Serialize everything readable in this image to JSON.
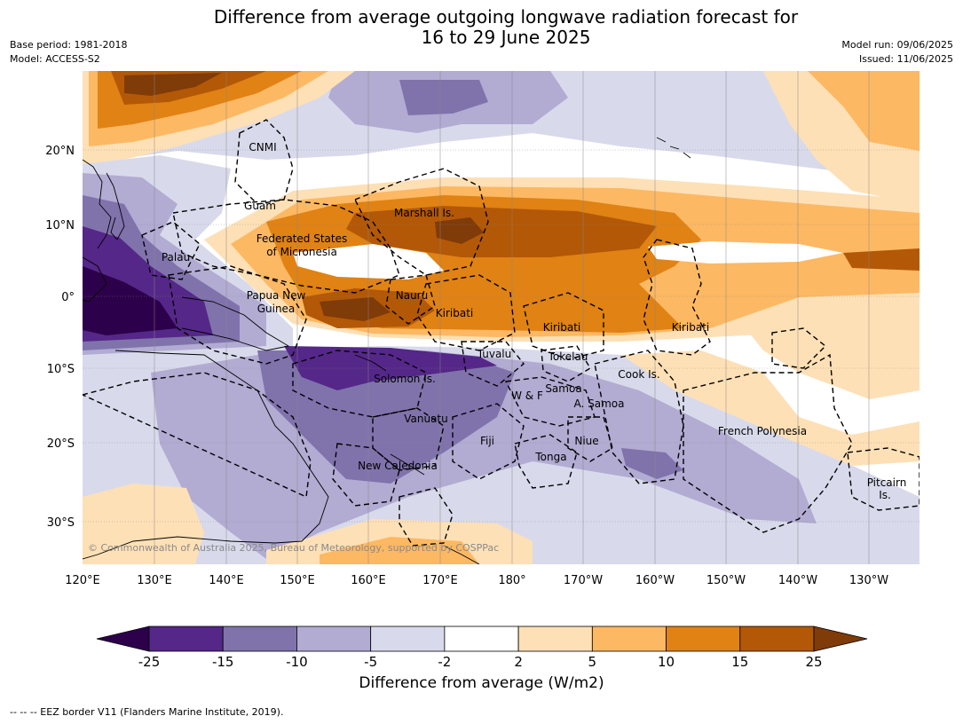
{
  "header": {
    "title_line1": "Difference from average outgoing longwave radiation forecast for",
    "title_line2": "16 to 29 June 2025",
    "base_period": "Base period: 1981-2018",
    "model": "Model: ACCESS-S2",
    "model_run": "Model run: 09/06/2025",
    "issued": "Issued: 11/06/2025"
  },
  "map": {
    "lon_ticks": [
      "120°E",
      "130°E",
      "140°E",
      "150°E",
      "160°E",
      "170°E",
      "180°",
      "170°W",
      "160°W",
      "150°W",
      "140°W",
      "130°W"
    ],
    "lat_ticks": [
      "20°N",
      "10°N",
      "0°",
      "10°S",
      "20°S",
      "30°S"
    ],
    "region_labels": [
      {
        "text": "CNMI"
      },
      {
        "text": "Guam"
      },
      {
        "text": "Marshall Is."
      },
      {
        "text": "Federated States"
      },
      {
        "text": "of Micronesia"
      },
      {
        "text": "Palau"
      },
      {
        "text": "Papua New"
      },
      {
        "text": "Guinea"
      },
      {
        "text": "Nauru"
      },
      {
        "text": "Kiribati"
      },
      {
        "text": "Kiribati"
      },
      {
        "text": "Kiribati"
      },
      {
        "text": "Tuvalu"
      },
      {
        "text": "Tokelau"
      },
      {
        "text": "Solomon Is."
      },
      {
        "text": "Cook Is."
      },
      {
        "text": "W & F"
      },
      {
        "text": "Samoa"
      },
      {
        "text": "A. Samoa"
      },
      {
        "text": "Vanuatu"
      },
      {
        "text": "Fiji"
      },
      {
        "text": "Niue"
      },
      {
        "text": "French Polynesia"
      },
      {
        "text": "Tonga"
      },
      {
        "text": "New Caledonia"
      },
      {
        "text": "Pitcairn"
      },
      {
        "text": "Is."
      }
    ],
    "copyright": "© Commonwealth of Australia 2025, Bureau of Meteorology, supported by COSPPac"
  },
  "colorbar": {
    "ticks": [
      "-25",
      "-15",
      "-10",
      "-5",
      "-2",
      "2",
      "5",
      "10",
      "15",
      "25"
    ],
    "colors": {
      "lt_minus25": "#2d004b",
      "m25_m15": "#542788",
      "m15_m10": "#8073ac",
      "m10_m5": "#b2abd2",
      "m5_m2": "#d8daeb",
      "m2_2": "#ffffff",
      "2_5": "#fee0b6",
      "5_10": "#fdb863",
      "10_15": "#e08214",
      "15_25": "#b35806",
      "gt_25": "#7f3b08"
    },
    "label": "Difference from average (W/m2)"
  },
  "footnote": "--  --  -- EEZ border V11 (Flanders Marine Institute, 2019)."
}
